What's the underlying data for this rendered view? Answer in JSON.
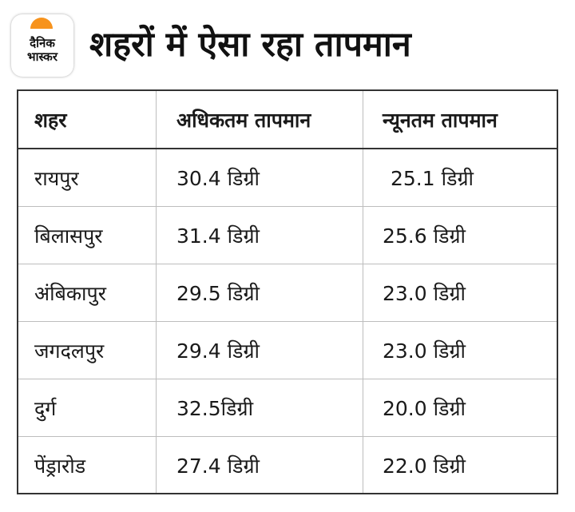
{
  "brand": {
    "line1": "दैनिक",
    "line2": "भास्कर",
    "accent_color": "#f7931d"
  },
  "title": "शहरों में ऐसा रहा तापमान",
  "table": {
    "headers": [
      "शहर",
      "अधिकतम तापमान",
      "न्यूनतम तापमान"
    ],
    "rows": [
      {
        "city": "रायपुर",
        "max": "30.4 डिग्री",
        "min": "25.1 डिग्री"
      },
      {
        "city": "बिलासपुर",
        "max": "31.4 डिग्री",
        "min": "25.6 डिग्री"
      },
      {
        "city": "अंबिकापुर",
        "max": "29.5 डिग्री",
        "min": "23.0 डिग्री"
      },
      {
        "city": "जगदलपुर",
        "max": "29.4 डिग्री",
        "min": "23.0 डिग्री"
      },
      {
        "city": "दुर्ग",
        "max": "32.5डिग्री",
        "min": "20.0 डिग्री"
      },
      {
        "city": "पेंड्रारोड",
        "max": "27.4 डिग्री",
        "min": "22.0 डिग्री"
      }
    ]
  }
}
